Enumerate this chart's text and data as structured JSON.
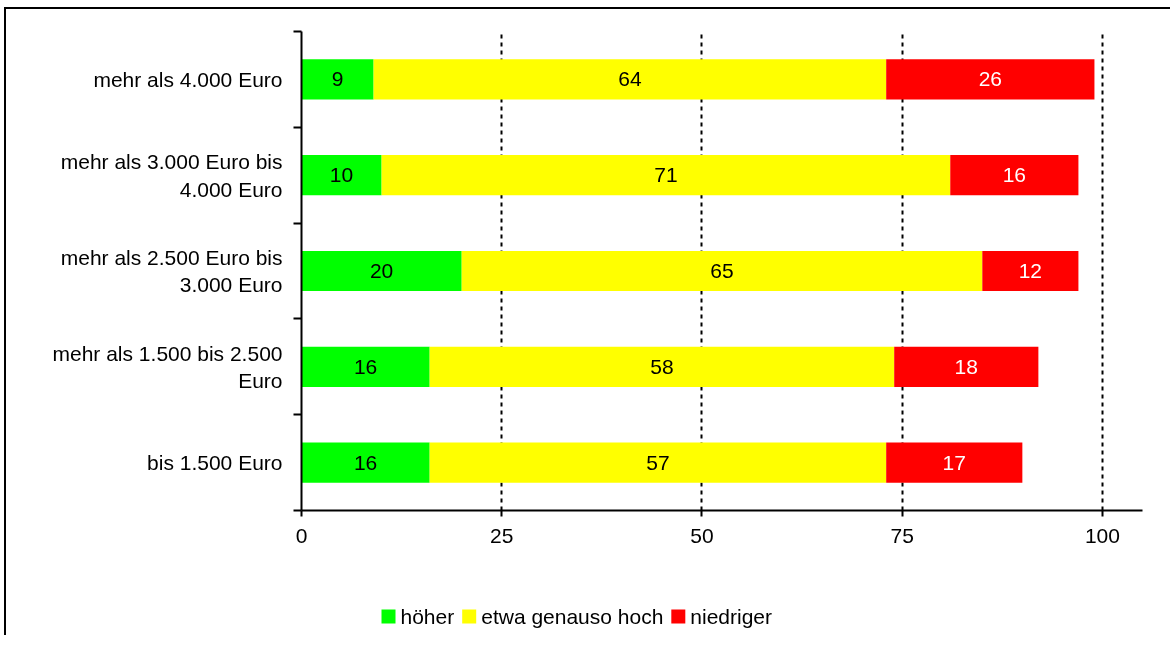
{
  "chart_data": {
    "type": "bar",
    "orientation": "horizontal",
    "stacked": true,
    "categories": [
      "mehr als 4.000 Euro",
      "mehr als 3.000 Euro bis 4.000 Euro",
      "mehr als 2.500 Euro bis 3.000 Euro",
      "mehr als 1.500 bis 2.500 Euro",
      "bis 1.500 Euro"
    ],
    "series": [
      {
        "name": "höher",
        "color": "#00ff00",
        "values": [
          9,
          10,
          20,
          16,
          16
        ]
      },
      {
        "name": "etwa genauso hoch",
        "color": "#ffff00",
        "values": [
          64,
          71,
          65,
          58,
          57
        ]
      },
      {
        "name": "niedriger",
        "color": "#ff0000",
        "values": [
          26,
          16,
          12,
          18,
          17
        ]
      }
    ],
    "xlim": [
      0,
      105
    ],
    "xticks": [
      0,
      25,
      50,
      75,
      100
    ],
    "grid": "x",
    "legend": "bottom",
    "data_labels": true
  }
}
